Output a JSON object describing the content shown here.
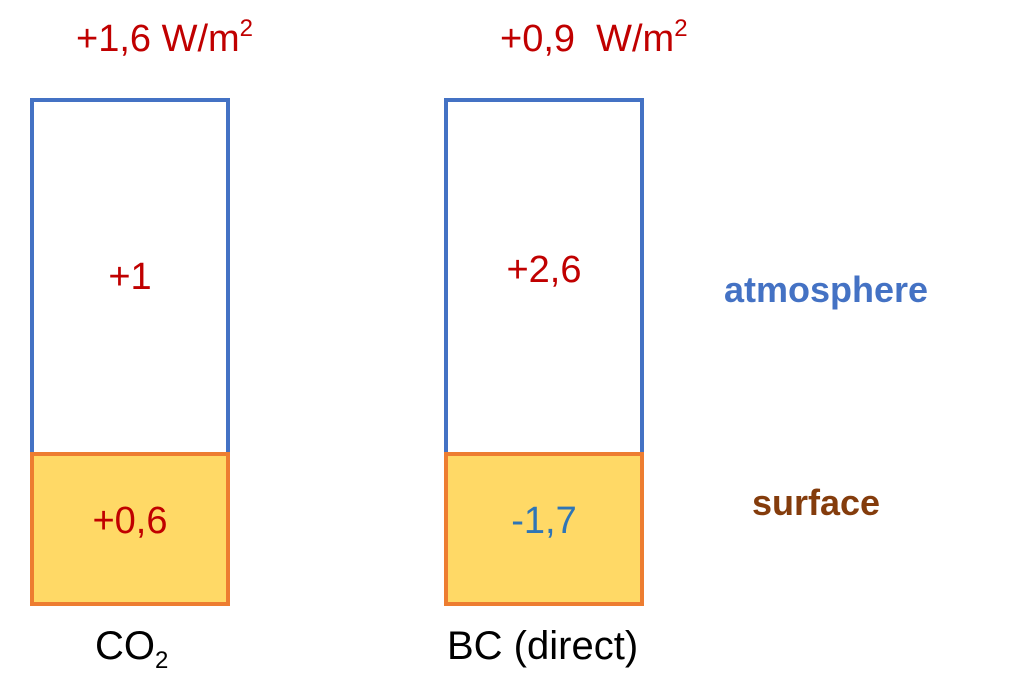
{
  "columns": [
    {
      "total": "+1,6 W/m",
      "total_sup": "2",
      "atmosphere_value": "+1",
      "surface_value": "+0,6",
      "name": "CO",
      "name_sub": "2"
    },
    {
      "total": "+0,9  W/m",
      "total_sup": "2",
      "atmosphere_value": "+2,6",
      "surface_value": "-1,7",
      "name": "BC (direct)",
      "name_sub": ""
    }
  ],
  "layers": {
    "atmosphere": "atmosphere",
    "surface": "surface"
  },
  "colors": {
    "positive": "#c00000",
    "negative": "#2e75b6",
    "atmosphere_border": "#4472c4",
    "atmosphere_label": "#4472c4",
    "surface_border": "#ed7d31",
    "surface_fill": "#ffd966",
    "surface_label": "#843c0c"
  }
}
